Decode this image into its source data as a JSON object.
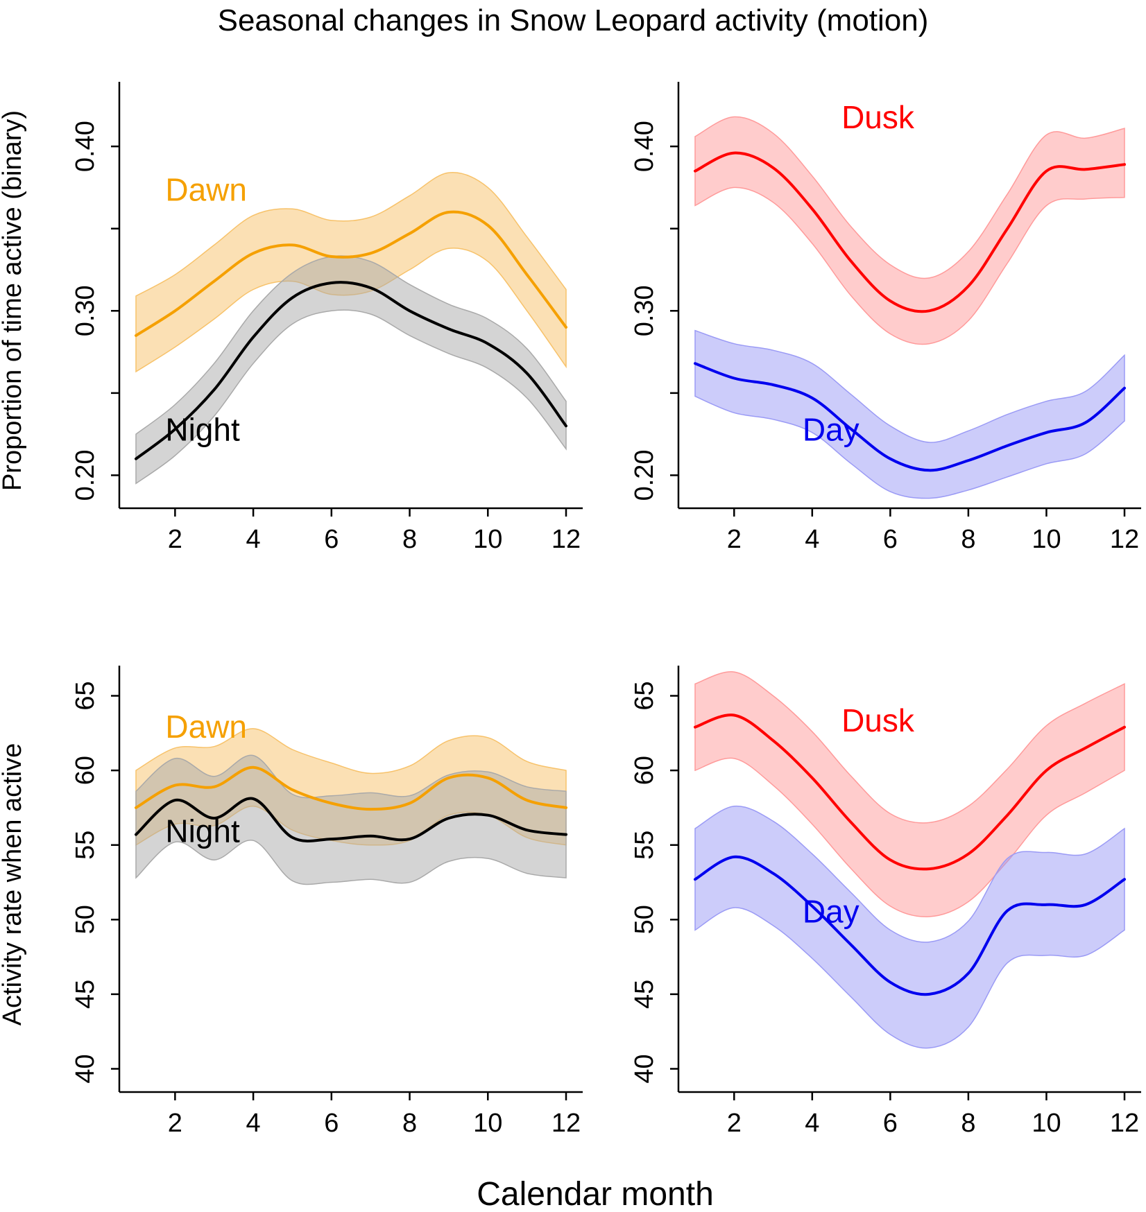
{
  "figure": {
    "title": "Seasonal changes in Snow Leopard activity (motion)",
    "xlabel": "Calendar month"
  },
  "colors": {
    "Dawn": "#F5A000",
    "Night": "#000000",
    "Dusk": "#FF0000",
    "Day": "#0000EE",
    "Dawn_band": "#F7C26A",
    "Night_band": "#A9A9A9",
    "Dusk_band": "#FF9A9A",
    "Day_band": "#9A9AF5"
  },
  "chart_data": [
    {
      "type": "line",
      "panel": "top-left",
      "ylabel": "Proportion of time active (binary)",
      "xlim": [
        1,
        12
      ],
      "ylim": [
        0.185,
        0.43
      ],
      "xticks": [
        "2",
        "4",
        "6",
        "8",
        "10",
        "12"
      ],
      "yticks": [
        0.2,
        0.25,
        0.3,
        0.35,
        0.4
      ],
      "ytick_labels": [
        "0.20",
        "0.30",
        "0.40"
      ],
      "x": [
        1,
        2,
        3,
        4,
        5,
        6,
        7,
        8,
        9,
        10,
        11,
        12
      ],
      "series": [
        {
          "name": "Dawn",
          "label": "Dawn",
          "values": [
            0.285,
            0.3,
            0.318,
            0.335,
            0.34,
            0.333,
            0.335,
            0.347,
            0.36,
            0.352,
            0.322,
            0.29
          ],
          "lower": [
            0.263,
            0.278,
            0.295,
            0.313,
            0.318,
            0.31,
            0.312,
            0.325,
            0.338,
            0.33,
            0.3,
            0.266
          ],
          "upper": [
            0.309,
            0.322,
            0.34,
            0.358,
            0.362,
            0.355,
            0.357,
            0.37,
            0.384,
            0.375,
            0.345,
            0.313
          ]
        },
        {
          "name": "Night",
          "label": "Night",
          "values": [
            0.21,
            0.228,
            0.252,
            0.284,
            0.308,
            0.317,
            0.314,
            0.3,
            0.289,
            0.28,
            0.262,
            0.23
          ],
          "lower": [
            0.195,
            0.212,
            0.236,
            0.268,
            0.292,
            0.3,
            0.298,
            0.285,
            0.274,
            0.265,
            0.247,
            0.216
          ],
          "upper": [
            0.225,
            0.243,
            0.268,
            0.3,
            0.323,
            0.333,
            0.33,
            0.316,
            0.304,
            0.295,
            0.277,
            0.245
          ]
        }
      ],
      "annotations": [
        {
          "text": "Dawn",
          "series": "Dawn",
          "x": 2.0,
          "y": 0.367
        },
        {
          "text": "Night",
          "series": "Night",
          "x": 2.0,
          "y": 0.221
        }
      ]
    },
    {
      "type": "line",
      "panel": "top-right",
      "ylabel": "",
      "xlim": [
        1,
        12
      ],
      "ylim": [
        0.185,
        0.43
      ],
      "xticks": [
        "2",
        "4",
        "6",
        "8",
        "10",
        "12"
      ],
      "yticks": [
        0.2,
        0.25,
        0.3,
        0.35,
        0.4
      ],
      "ytick_labels": [
        "0.20",
        "0.30",
        "0.40"
      ],
      "x": [
        1,
        2,
        3,
        4,
        5,
        6,
        7,
        8,
        9,
        10,
        11,
        12
      ],
      "series": [
        {
          "name": "Dusk",
          "label": "Dusk",
          "values": [
            0.385,
            0.396,
            0.387,
            0.362,
            0.33,
            0.306,
            0.3,
            0.315,
            0.35,
            0.385,
            0.386,
            0.389
          ],
          "lower": [
            0.364,
            0.375,
            0.366,
            0.341,
            0.309,
            0.286,
            0.28,
            0.294,
            0.329,
            0.364,
            0.368,
            0.369
          ],
          "upper": [
            0.406,
            0.418,
            0.408,
            0.382,
            0.351,
            0.328,
            0.32,
            0.336,
            0.371,
            0.407,
            0.405,
            0.411
          ]
        },
        {
          "name": "Day",
          "label": "Day",
          "values": [
            0.268,
            0.259,
            0.255,
            0.247,
            0.228,
            0.21,
            0.203,
            0.209,
            0.218,
            0.226,
            0.232,
            0.253
          ],
          "lower": [
            0.248,
            0.238,
            0.234,
            0.226,
            0.207,
            0.19,
            0.186,
            0.191,
            0.199,
            0.207,
            0.213,
            0.233
          ],
          "upper": [
            0.288,
            0.28,
            0.276,
            0.268,
            0.249,
            0.23,
            0.22,
            0.227,
            0.237,
            0.245,
            0.251,
            0.273
          ]
        }
      ],
      "annotations": [
        {
          "text": "Dusk",
          "series": "Dusk",
          "x": 5.0,
          "y": 0.411
        },
        {
          "text": "Day",
          "series": "Day",
          "x": 4.0,
          "y": 0.221
        }
      ]
    },
    {
      "type": "line",
      "panel": "bottom-left",
      "ylabel": "Activity rate when active",
      "xlim": [
        1,
        12
      ],
      "ylim": [
        39,
        66
      ],
      "xticks": [
        "2",
        "4",
        "6",
        "8",
        "10",
        "12"
      ],
      "yticks": [
        40,
        45,
        50,
        55,
        60,
        65
      ],
      "ytick_labels": [
        "40",
        "45",
        "50",
        "55",
        "60",
        "65"
      ],
      "x": [
        1,
        2,
        3,
        4,
        5,
        6,
        7,
        8,
        9,
        10,
        11,
        12
      ],
      "series": [
        {
          "name": "Dawn",
          "label": "Dawn",
          "values": [
            57.5,
            59.0,
            58.9,
            60.2,
            58.7,
            57.8,
            57.4,
            57.8,
            59.5,
            59.5,
            58.0,
            57.5
          ],
          "lower": [
            55.0,
            56.4,
            56.3,
            57.6,
            56.0,
            55.3,
            55.0,
            55.3,
            57.0,
            57.0,
            55.5,
            55.0
          ],
          "upper": [
            60.0,
            61.5,
            61.6,
            62.8,
            61.4,
            60.5,
            59.8,
            60.3,
            62.0,
            62.2,
            60.6,
            60.0
          ]
        },
        {
          "name": "Night",
          "label": "Night",
          "values": [
            55.7,
            58.0,
            56.8,
            58.1,
            55.5,
            55.4,
            55.6,
            55.4,
            56.8,
            57.0,
            56.0,
            55.7
          ],
          "lower": [
            52.8,
            55.2,
            54.0,
            55.3,
            52.6,
            52.5,
            52.7,
            52.5,
            53.9,
            54.1,
            53.1,
            52.8
          ],
          "upper": [
            58.6,
            60.8,
            59.6,
            61.0,
            58.4,
            58.3,
            58.5,
            58.3,
            59.7,
            59.9,
            58.9,
            58.6
          ]
        }
      ],
      "annotations": [
        {
          "text": "Dawn",
          "series": "Dawn",
          "x": 2.0,
          "y": 62.2
        },
        {
          "text": "Night",
          "series": "Night",
          "x": 2.0,
          "y": 55.2
        }
      ]
    },
    {
      "type": "line",
      "panel": "bottom-right",
      "ylabel": "",
      "xlim": [
        1,
        12
      ],
      "ylim": [
        39,
        66
      ],
      "xticks": [
        "2",
        "4",
        "6",
        "8",
        "10",
        "12"
      ],
      "yticks": [
        40,
        45,
        50,
        55,
        60,
        65
      ],
      "ytick_labels": [
        "40",
        "45",
        "50",
        "55",
        "60",
        "65"
      ],
      "x": [
        1,
        2,
        3,
        4,
        5,
        6,
        7,
        8,
        9,
        10,
        11,
        12
      ],
      "series": [
        {
          "name": "Dusk",
          "label": "Dusk",
          "values": [
            62.9,
            63.7,
            62.0,
            59.5,
            56.5,
            54.0,
            53.4,
            54.4,
            57.0,
            60.0,
            61.5,
            62.9
          ],
          "lower": [
            60.0,
            60.8,
            59.0,
            56.4,
            53.4,
            50.9,
            50.2,
            51.2,
            53.9,
            57.0,
            58.5,
            60.0
          ],
          "upper": [
            65.8,
            66.6,
            65.0,
            62.6,
            59.6,
            57.1,
            56.5,
            57.6,
            60.1,
            63.0,
            64.5,
            65.8
          ]
        },
        {
          "name": "Day",
          "label": "Day",
          "values": [
            52.7,
            54.2,
            53.1,
            50.9,
            48.3,
            45.8,
            45.0,
            46.4,
            50.6,
            51.0,
            51.0,
            52.7
          ],
          "lower": [
            49.3,
            50.8,
            49.6,
            47.4,
            44.8,
            42.3,
            41.4,
            42.8,
            47.1,
            47.6,
            47.6,
            49.3
          ],
          "upper": [
            56.1,
            57.6,
            56.6,
            54.4,
            51.8,
            49.3,
            48.5,
            49.9,
            54.1,
            54.5,
            54.4,
            56.1
          ]
        }
      ],
      "annotations": [
        {
          "text": "Dusk",
          "series": "Dusk",
          "x": 5.0,
          "y": 62.6
        },
        {
          "text": "Day",
          "series": "Day",
          "x": 4.0,
          "y": 49.8
        }
      ]
    }
  ]
}
